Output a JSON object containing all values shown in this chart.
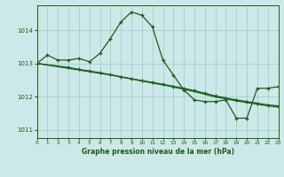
{
  "bg_color": "#cce8e8",
  "grid_color": "#99cccc",
  "line_color": "#1a5c1a",
  "title": "Graphe pression niveau de la mer (hPa)",
  "xlim": [
    0,
    23
  ],
  "ylim": [
    1010.75,
    1014.75
  ],
  "yticks": [
    1011,
    1012,
    1013,
    1014
  ],
  "xticks": [
    0,
    1,
    2,
    3,
    4,
    5,
    6,
    7,
    8,
    9,
    10,
    11,
    12,
    13,
    14,
    15,
    16,
    17,
    18,
    19,
    20,
    21,
    22,
    23
  ],
  "series1_x": [
    0,
    1,
    2,
    3,
    4,
    5,
    6,
    7,
    8,
    9,
    10,
    11,
    12,
    13,
    14,
    15,
    16,
    17,
    18,
    19,
    20,
    21,
    22,
    23
  ],
  "series1_y": [
    1013.0,
    1013.25,
    1013.1,
    1013.1,
    1013.15,
    1013.05,
    1013.3,
    1013.75,
    1014.25,
    1014.55,
    1014.45,
    1014.1,
    1013.1,
    1012.65,
    1012.2,
    1011.9,
    1011.85,
    1011.85,
    1011.9,
    1011.35,
    1011.35,
    1012.25,
    1012.25,
    1012.3
  ],
  "series2_x": [
    0,
    3,
    4,
    5,
    6,
    7,
    8,
    9,
    10,
    11,
    12,
    13,
    14,
    15,
    16,
    17,
    18,
    19,
    20,
    21,
    22,
    23
  ],
  "series2_y": [
    1013.0,
    1012.88,
    1012.82,
    1012.77,
    1012.72,
    1012.66,
    1012.6,
    1012.54,
    1012.48,
    1012.43,
    1012.37,
    1012.31,
    1012.25,
    1012.18,
    1012.1,
    1012.02,
    1011.96,
    1011.9,
    1011.85,
    1011.8,
    1011.75,
    1011.72
  ],
  "series3_x": [
    0,
    3,
    4,
    5,
    6,
    7,
    8,
    9,
    10,
    11,
    12,
    13,
    14,
    15,
    16,
    17,
    18,
    19,
    20,
    21,
    22,
    23
  ],
  "series3_y": [
    1013.0,
    1012.85,
    1012.8,
    1012.75,
    1012.7,
    1012.65,
    1012.59,
    1012.53,
    1012.47,
    1012.41,
    1012.35,
    1012.29,
    1012.22,
    1012.15,
    1012.07,
    1011.99,
    1011.93,
    1011.87,
    1011.82,
    1011.77,
    1011.72,
    1011.68
  ]
}
